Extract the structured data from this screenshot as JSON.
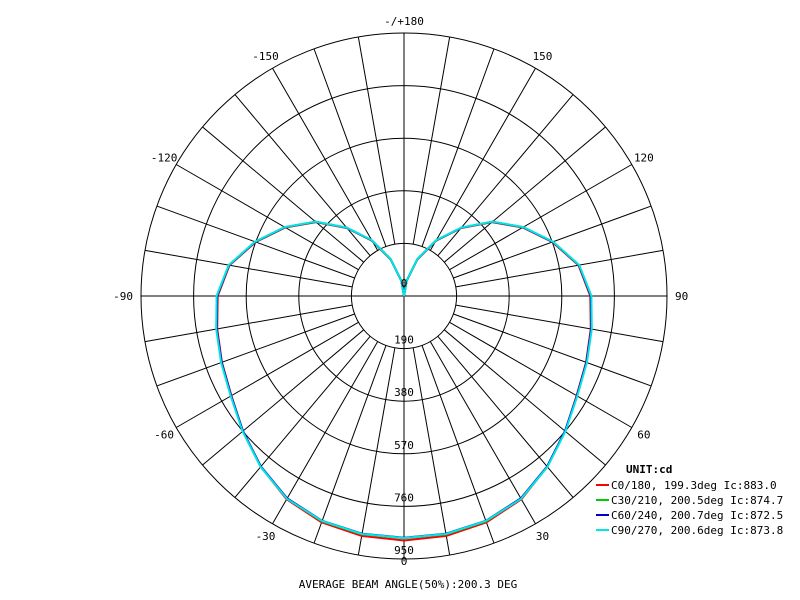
{
  "chart_data": {
    "type": "polar",
    "unit_label": "UNIT:cd",
    "footer": "AVERAGE BEAM ANGLE(50%):200.3 DEG",
    "angle_labels": [
      {
        "deg": 0,
        "text": "0"
      },
      {
        "deg": 30,
        "text": "30"
      },
      {
        "deg": -30,
        "text": "-30"
      },
      {
        "deg": 60,
        "text": "60"
      },
      {
        "deg": -60,
        "text": "-60"
      },
      {
        "deg": 90,
        "text": "90"
      },
      {
        "deg": -90,
        "text": "-90"
      },
      {
        "deg": 120,
        "text": "120"
      },
      {
        "deg": -120,
        "text": "-120"
      },
      {
        "deg": 150,
        "text": "150"
      },
      {
        "deg": -150,
        "text": "-150"
      },
      {
        "deg": 180,
        "text": "-/+180"
      }
    ],
    "ring_values": [
      190,
      380,
      570,
      760,
      950
    ],
    "r_max": 950,
    "series": [
      {
        "name": "C0/180, 199.3deg Ic:883.0",
        "color": "#ff0000",
        "angles": [
          0,
          10,
          20,
          30,
          40,
          50,
          60,
          70,
          80,
          90,
          100,
          110,
          120,
          130,
          140,
          150,
          160,
          170,
          180
        ],
        "values": [
          883,
          880,
          870,
          848,
          805,
          760,
          720,
          700,
          685,
          673,
          640,
          570,
          495,
          415,
          320,
          230,
          140,
          55,
          0
        ]
      },
      {
        "name": "C30/210, 200.5deg Ic:874.7",
        "color": "#00cc00",
        "angles": [
          0,
          10,
          20,
          30,
          40,
          50,
          60,
          70,
          80,
          90,
          100,
          110,
          120,
          130,
          140,
          150,
          160,
          170,
          180
        ],
        "values": [
          875,
          874,
          866,
          845,
          805,
          760,
          722,
          702,
          688,
          676,
          642,
          572,
          497,
          417,
          322,
          232,
          142,
          56,
          0
        ]
      },
      {
        "name": "C60/240, 200.7deg Ic:872.5",
        "color": "#0000cc",
        "angles": [
          0,
          10,
          20,
          30,
          40,
          50,
          60,
          70,
          80,
          90,
          100,
          110,
          120,
          130,
          140,
          150,
          160,
          170,
          180
        ],
        "values": [
          873,
          872,
          864,
          844,
          804,
          759,
          721,
          701,
          687,
          675,
          642,
          572,
          497,
          417,
          322,
          232,
          142,
          56,
          0
        ]
      },
      {
        "name": "C90/270, 200.6deg Ic:873.8",
        "color": "#00e5e5",
        "angles": [
          0,
          10,
          20,
          30,
          40,
          50,
          60,
          70,
          80,
          90,
          100,
          110,
          120,
          130,
          140,
          150,
          160,
          170,
          180
        ],
        "values": [
          874,
          873,
          865,
          846,
          806,
          761,
          723,
          703,
          689,
          677,
          643,
          573,
          498,
          418,
          323,
          233,
          143,
          56,
          0
        ]
      }
    ]
  }
}
